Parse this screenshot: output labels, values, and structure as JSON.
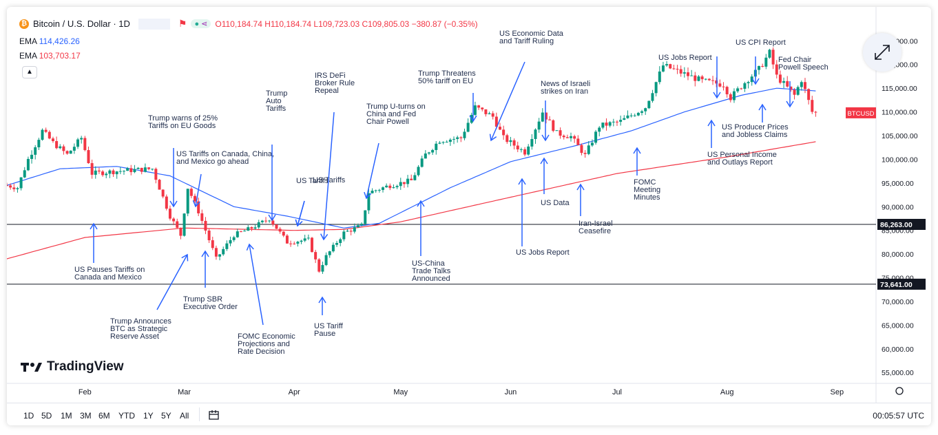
{
  "header": {
    "symbol": "Bitcoin / U.S. Dollar · 1D",
    "coin_icon": "bitcoin-icon",
    "open": "O110,184.74",
    "high": "H110,184.74",
    "low": "L109,723.03",
    "close": "C109,805.03",
    "change": "−380.87 (−0.35%)"
  },
  "indicators": [
    {
      "label": "EMA",
      "value": "114,426.26",
      "color": "#2962ff"
    },
    {
      "label": "EMA",
      "value": "103,703.17",
      "color": "#f23645"
    }
  ],
  "brand": "TradingView",
  "ticker_tag": "BTCUSD",
  "bottom_bar": {
    "ranges": [
      "1D",
      "5D",
      "1M",
      "3M",
      "6M",
      "YTD",
      "1Y",
      "5Y",
      "All"
    ],
    "clock": "00:05:57 UTC"
  },
  "chart_data": {
    "type": "candlestick",
    "x_labels": [
      "Feb",
      "Mar",
      "Apr",
      "May",
      "Jun",
      "Jul",
      "Aug",
      "Sep"
    ],
    "y_ticks": [
      55000,
      60000,
      65000,
      70000,
      75000,
      80000,
      85000,
      90000,
      95000,
      100000,
      105000,
      110000,
      115000,
      120000,
      125000
    ],
    "y_tick_labels": [
      "55,000.00",
      "60,000.00",
      "65,000.00",
      "70,000.00",
      "75,000.00",
      "80,000.00",
      "85,000.00",
      "90,000.00",
      "95,000.00",
      "100,000.00",
      "105,000.00",
      "110,000.00",
      "115,000.00",
      "120,000.00",
      "125,000.00"
    ],
    "ylim": [
      53000,
      131000
    ],
    "xlim": [
      "2025-01-10",
      "2025-09-12"
    ],
    "horizontal_levels": [
      {
        "value": 86263,
        "label": "86,263.00"
      },
      {
        "value": 73641,
        "label": "73,641.00"
      }
    ],
    "last_price": {
      "value": 109805,
      "label": "BTCUSD"
    },
    "price_anchors": [
      [
        "2025-01-10",
        94500
      ],
      [
        "2025-01-13",
        94000
      ],
      [
        "2025-01-16",
        100000
      ],
      [
        "2025-01-20",
        106000
      ],
      [
        "2025-01-23",
        103500
      ],
      [
        "2025-01-27",
        101000
      ],
      [
        "2025-01-31",
        104500
      ],
      [
        "2025-02-03",
        97000
      ],
      [
        "2025-02-10",
        97500
      ],
      [
        "2025-02-20",
        98000
      ],
      [
        "2025-02-25",
        88000
      ],
      [
        "2025-02-28",
        84000
      ],
      [
        "2025-03-02",
        94000
      ],
      [
        "2025-03-05",
        89000
      ],
      [
        "2025-03-10",
        79000
      ],
      [
        "2025-03-15",
        84000
      ],
      [
        "2025-03-20",
        85500
      ],
      [
        "2025-03-25",
        87500
      ],
      [
        "2025-03-30",
        82500
      ],
      [
        "2025-04-05",
        83000
      ],
      [
        "2025-04-08",
        76500
      ],
      [
        "2025-04-10",
        79500
      ],
      [
        "2025-04-15",
        84500
      ],
      [
        "2025-04-20",
        86000
      ],
      [
        "2025-04-22",
        93000
      ],
      [
        "2025-04-28",
        94500
      ],
      [
        "2025-05-04",
        95500
      ],
      [
        "2025-05-08",
        101000
      ],
      [
        "2025-05-12",
        104000
      ],
      [
        "2025-05-18",
        104500
      ],
      [
        "2025-05-22",
        111000
      ],
      [
        "2025-05-27",
        109000
      ],
      [
        "2025-05-30",
        104500
      ],
      [
        "2025-06-05",
        101500
      ],
      [
        "2025-06-10",
        110000
      ],
      [
        "2025-06-14",
        105500
      ],
      [
        "2025-06-18",
        104800
      ],
      [
        "2025-06-22",
        100800
      ],
      [
        "2025-06-26",
        107000
      ],
      [
        "2025-07-02",
        108000
      ],
      [
        "2025-07-09",
        111000
      ],
      [
        "2025-07-14",
        119800
      ],
      [
        "2025-07-20",
        118000
      ],
      [
        "2025-07-25",
        116500
      ],
      [
        "2025-07-31",
        115800
      ],
      [
        "2025-08-02",
        113000
      ],
      [
        "2025-08-07",
        117000
      ],
      [
        "2025-08-10",
        119000
      ],
      [
        "2025-08-13",
        122500
      ],
      [
        "2025-08-15",
        117500
      ],
      [
        "2025-08-20",
        113500
      ],
      [
        "2025-08-22",
        116800
      ],
      [
        "2025-08-25",
        110000
      ],
      [
        "2025-08-26",
        109805
      ]
    ],
    "ema_slow_anchors": [
      [
        "2025-01-10",
        79000
      ],
      [
        "2025-02-01",
        83500
      ],
      [
        "2025-03-01",
        85500
      ],
      [
        "2025-04-01",
        85000
      ],
      [
        "2025-04-15",
        85200
      ],
      [
        "2025-05-01",
        86800
      ],
      [
        "2025-06-01",
        92000
      ],
      [
        "2025-07-01",
        97000
      ],
      [
        "2025-08-01",
        100500
      ],
      [
        "2025-08-26",
        103703
      ]
    ],
    "ema_fast_anchors": [
      [
        "2025-01-10",
        94500
      ],
      [
        "2025-01-25",
        98000
      ],
      [
        "2025-02-10",
        98500
      ],
      [
        "2025-02-25",
        96500
      ],
      [
        "2025-03-15",
        90000
      ],
      [
        "2025-03-30",
        88000
      ],
      [
        "2025-04-15",
        85500
      ],
      [
        "2025-04-25",
        86500
      ],
      [
        "2025-05-15",
        94000
      ],
      [
        "2025-06-01",
        99500
      ],
      [
        "2025-06-20",
        103000
      ],
      [
        "2025-07-05",
        106000
      ],
      [
        "2025-07-20",
        110000
      ],
      [
        "2025-08-05",
        113500
      ],
      [
        "2025-08-15",
        115000
      ],
      [
        "2025-08-26",
        114426
      ]
    ],
    "annotations": [
      {
        "lines": [
          "Trump warns of 25%",
          "Tariffs on EU Goods"
        ]
      },
      {
        "lines": [
          "US Tariffs on Canada, China,",
          "and Mexico go ahead"
        ]
      },
      {
        "lines": [
          "US Tariffs"
        ]
      },
      {
        "lines": [
          "US Pauses Tariffs on",
          "Canada and Mexico"
        ]
      },
      {
        "lines": [
          "Trump Announces",
          "BTC as Strategic",
          "Reserve Asset"
        ]
      },
      {
        "lines": [
          "Trump SBR",
          "Executive Order"
        ]
      },
      {
        "lines": [
          "Trump",
          "Auto",
          "Tariffs"
        ]
      },
      {
        "lines": [
          "US Tariffs"
        ]
      },
      {
        "lines": [
          "FOMC Economic",
          "Projections and",
          "Rate Decision"
        ]
      },
      {
        "lines": [
          "IRS DeFi",
          "Broker Rule",
          "Repeal"
        ]
      },
      {
        "lines": [
          "US Tariff",
          "Pause"
        ]
      },
      {
        "lines": [
          "Trump U-turns on",
          "China and Fed",
          "Chair Powell"
        ]
      },
      {
        "lines": [
          "US-China",
          "Trade Talks",
          "Announced"
        ]
      },
      {
        "lines": [
          "Trump Threatens",
          "50% tariff on EU"
        ]
      },
      {
        "lines": [
          "US Economic Data",
          "and Tariff Ruling"
        ]
      },
      {
        "lines": [
          "US Jobs Report"
        ]
      },
      {
        "lines": [
          "News of Israeli",
          "strikes on Iran"
        ]
      },
      {
        "lines": [
          "US Data"
        ]
      },
      {
        "lines": [
          "Iran-Israel",
          "Ceasefire"
        ]
      },
      {
        "lines": [
          "FOMC",
          "Meeting",
          "Minutes"
        ]
      },
      {
        "lines": [
          "US Jobs Report"
        ]
      },
      {
        "lines": [
          "US Personal Income",
          "and Outlays Report"
        ]
      },
      {
        "lines": [
          "US CPI Report"
        ]
      },
      {
        "lines": [
          "US Producer Prices",
          "and Jobless Claims"
        ]
      },
      {
        "lines": [
          "Fed Chair",
          "Powell Speech"
        ]
      }
    ]
  }
}
